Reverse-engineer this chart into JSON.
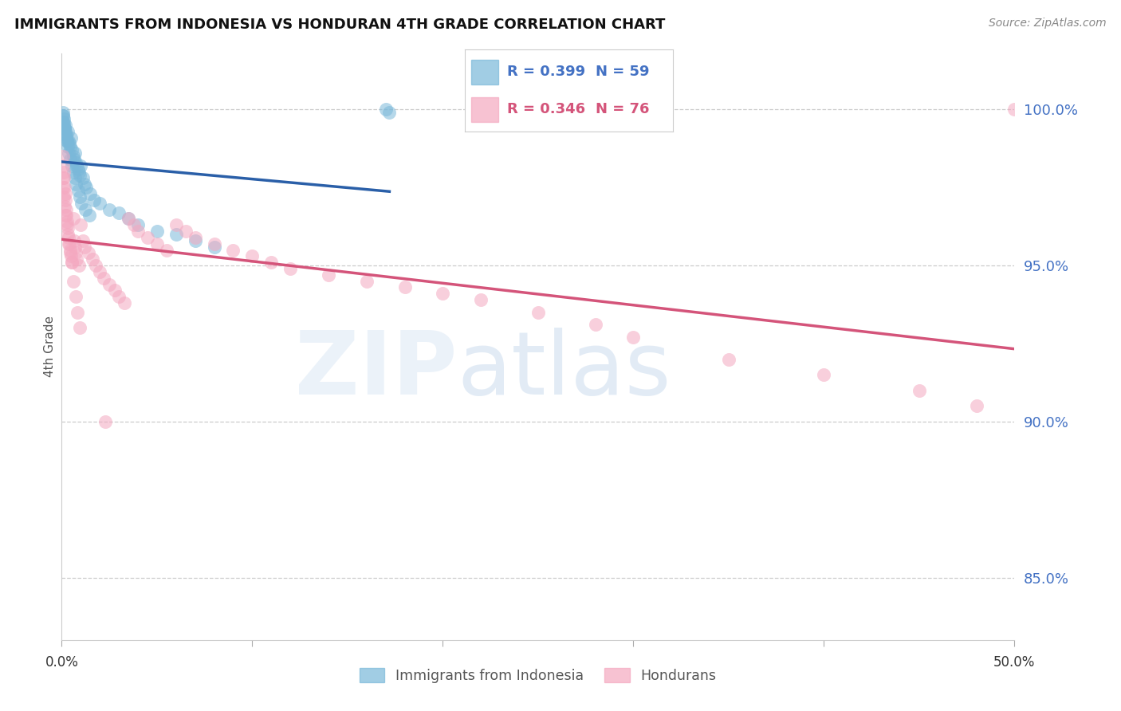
{
  "title": "IMMIGRANTS FROM INDONESIA VS HONDURAN 4TH GRADE CORRELATION CHART",
  "source": "Source: ZipAtlas.com",
  "ylabel": "4th Grade",
  "xlim": [
    0.0,
    50.0
  ],
  "ylim": [
    83.0,
    101.8
  ],
  "yticks": [
    85.0,
    90.0,
    95.0,
    100.0
  ],
  "ytick_labels": [
    "85.0%",
    "90.0%",
    "95.0%",
    "100.0%"
  ],
  "xtick_left": "0.0%",
  "xtick_right": "50.0%",
  "blue_color": "#7ab8d9",
  "pink_color": "#f4a8c0",
  "blue_line_color": "#2a5fa8",
  "pink_line_color": "#d4547a",
  "tick_color": "#4472c4",
  "label1": "Immigrants from Indonesia",
  "label2": "Hondurans",
  "grid_color": "#cccccc",
  "legend_r1": "0.399",
  "legend_n1": "59",
  "legend_r2": "0.346",
  "legend_n2": "76",
  "blue_seed": 42,
  "pink_seed": 99,
  "blue_x_data": [
    0.05,
    0.08,
    0.1,
    0.12,
    0.15,
    0.18,
    0.2,
    0.22,
    0.25,
    0.28,
    0.3,
    0.35,
    0.4,
    0.45,
    0.5,
    0.55,
    0.6,
    0.65,
    0.7,
    0.75,
    0.8,
    0.85,
    0.9,
    0.95,
    1.0,
    1.1,
    1.2,
    1.3,
    1.5,
    1.7,
    2.0,
    2.5,
    3.0,
    3.5,
    4.0,
    5.0,
    6.0,
    7.0,
    8.0,
    0.06,
    0.09,
    0.13,
    0.17,
    0.21,
    0.26,
    0.32,
    0.38,
    0.44,
    0.52,
    0.6,
    0.68,
    0.76,
    0.85,
    0.93,
    1.05,
    1.25,
    1.45,
    17.0,
    17.2
  ],
  "blue_y_data": [
    99.8,
    99.6,
    99.5,
    99.7,
    99.4,
    99.3,
    99.5,
    99.2,
    99.1,
    99.0,
    99.3,
    99.0,
    98.9,
    98.8,
    99.1,
    98.7,
    98.5,
    98.4,
    98.6,
    98.3,
    98.2,
    98.1,
    98.0,
    97.9,
    98.2,
    97.8,
    97.6,
    97.5,
    97.3,
    97.1,
    97.0,
    96.8,
    96.7,
    96.5,
    96.3,
    96.1,
    96.0,
    95.8,
    95.6,
    99.9,
    99.8,
    99.6,
    99.4,
    99.2,
    99.0,
    98.8,
    98.6,
    98.4,
    98.2,
    98.0,
    97.8,
    97.6,
    97.4,
    97.2,
    97.0,
    96.8,
    96.6,
    100.0,
    99.9
  ],
  "pink_x_data": [
    0.05,
    0.08,
    0.1,
    0.12,
    0.15,
    0.18,
    0.2,
    0.22,
    0.25,
    0.28,
    0.3,
    0.35,
    0.4,
    0.45,
    0.5,
    0.55,
    0.6,
    0.65,
    0.7,
    0.75,
    0.8,
    0.9,
    1.0,
    1.1,
    1.2,
    1.4,
    1.6,
    1.8,
    2.0,
    2.2,
    2.5,
    2.8,
    3.0,
    3.3,
    3.5,
    3.8,
    4.0,
    4.5,
    5.0,
    5.5,
    6.0,
    6.5,
    7.0,
    8.0,
    9.0,
    10.0,
    11.0,
    12.0,
    14.0,
    16.0,
    18.0,
    20.0,
    22.0,
    25.0,
    28.0,
    30.0,
    35.0,
    40.0,
    45.0,
    48.0,
    0.06,
    0.09,
    0.13,
    0.17,
    0.21,
    0.26,
    0.32,
    0.38,
    0.45,
    0.53,
    0.62,
    0.72,
    0.83,
    0.95,
    2.3,
    50.0
  ],
  "pink_y_data": [
    98.5,
    98.2,
    98.0,
    97.8,
    97.5,
    97.3,
    97.1,
    96.8,
    96.6,
    96.4,
    96.2,
    95.9,
    95.7,
    95.5,
    95.3,
    95.1,
    96.5,
    95.8,
    95.6,
    95.4,
    95.2,
    95.0,
    96.3,
    95.8,
    95.6,
    95.4,
    95.2,
    95.0,
    94.8,
    94.6,
    94.4,
    94.2,
    94.0,
    93.8,
    96.5,
    96.3,
    96.1,
    95.9,
    95.7,
    95.5,
    96.3,
    96.1,
    95.9,
    95.7,
    95.5,
    95.3,
    95.1,
    94.9,
    94.7,
    94.5,
    94.3,
    94.1,
    93.9,
    93.5,
    93.1,
    92.7,
    92.0,
    91.5,
    91.0,
    90.5,
    97.8,
    97.5,
    97.2,
    96.9,
    96.6,
    96.3,
    96.0,
    95.7,
    95.4,
    95.1,
    94.5,
    94.0,
    93.5,
    93.0,
    90.0,
    100.0
  ]
}
